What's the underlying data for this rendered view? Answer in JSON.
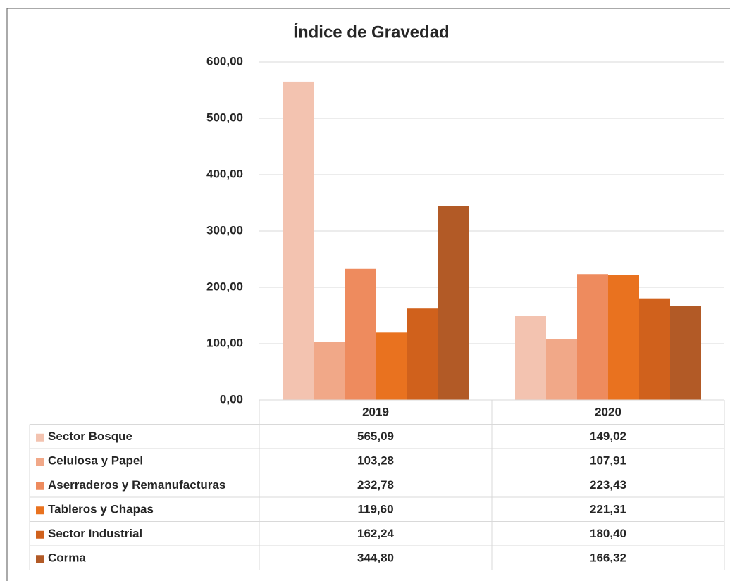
{
  "chart_data": {
    "type": "bar",
    "title": "Índice de Gravedad",
    "categories": [
      "2019",
      "2020"
    ],
    "series": [
      {
        "name": "Sector Bosque",
        "color": "#f3c3b0",
        "values": [
          565.09,
          149.02
        ],
        "value_labels": [
          "565,09",
          "149,02"
        ]
      },
      {
        "name": "Celulosa y Papel",
        "color": "#f1a888",
        "values": [
          103.28,
          107.91
        ],
        "value_labels": [
          "103,28",
          "107,91"
        ]
      },
      {
        "name": "Aserraderos y Remanufacturas",
        "color": "#ee8b5e",
        "values": [
          232.78,
          223.43
        ],
        "value_labels": [
          "232,78",
          "223,43"
        ]
      },
      {
        "name": "Tableros y Chapas",
        "color": "#e9721f",
        "values": [
          119.6,
          221.31
        ],
        "value_labels": [
          "119,60",
          "221,31"
        ]
      },
      {
        "name": "Sector Industrial",
        "color": "#d0611c",
        "values": [
          162.24,
          180.4
        ],
        "value_labels": [
          "162,24",
          "180,40"
        ]
      },
      {
        "name": "Corma",
        "color": "#b25a26",
        "values": [
          344.8,
          166.32
        ],
        "value_labels": [
          "344,80",
          "166,32"
        ]
      }
    ],
    "ylim": [
      0,
      600
    ],
    "yticks": [
      {
        "value": 0,
        "label": "0,00"
      },
      {
        "value": 100,
        "label": "100,00"
      },
      {
        "value": 200,
        "label": "200,00"
      },
      {
        "value": 300,
        "label": "300,00"
      },
      {
        "value": 400,
        "label": "400,00"
      },
      {
        "value": 500,
        "label": "500,00"
      },
      {
        "value": 600,
        "label": "600,00"
      }
    ],
    "grid": true
  }
}
